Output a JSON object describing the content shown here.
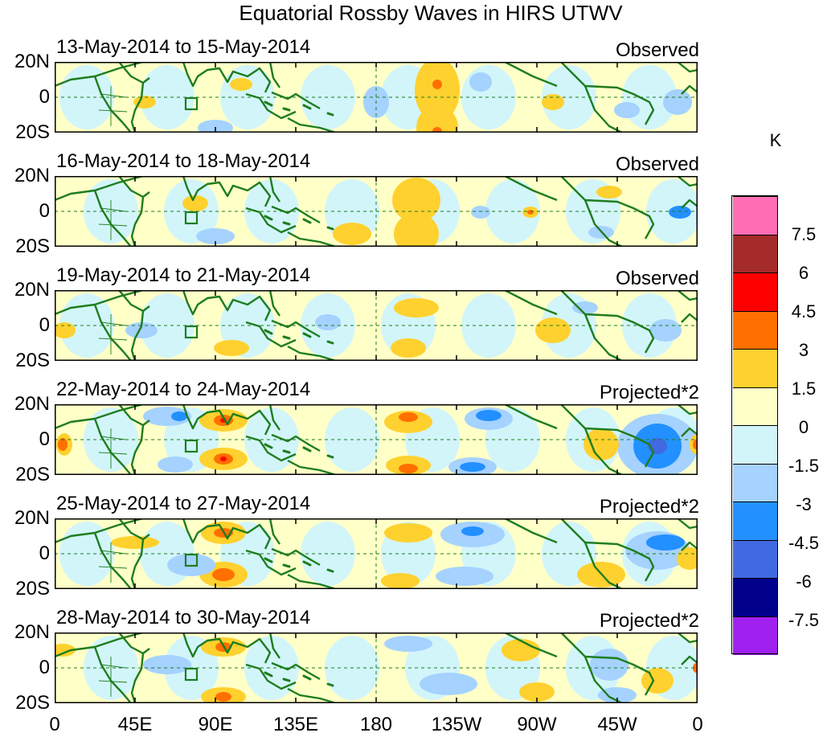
{
  "title": "Equatorial Rossby Waves in HIRS UTWV",
  "lat_labels": [
    "20N",
    "0",
    "20S"
  ],
  "panels": [
    {
      "date_range": "13-May-2014 to 15-May-2014",
      "type": "Observed"
    },
    {
      "date_range": "16-May-2014 to 18-May-2014",
      "type": "Observed"
    },
    {
      "date_range": "19-May-2014 to 21-May-2014",
      "type": "Observed"
    },
    {
      "date_range": "22-May-2014 to 24-May-2014",
      "type": "Projected*2"
    },
    {
      "date_range": "25-May-2014 to 27-May-2014",
      "type": "Projected*2"
    },
    {
      "date_range": "28-May-2014 to 30-May-2014",
      "type": "Projected*2"
    }
  ],
  "x_axis": {
    "ticks": [
      "0",
      "45E",
      "90E",
      "135E",
      "180",
      "135W",
      "90W",
      "45W",
      "0"
    ]
  },
  "colorbar": {
    "unit": "K",
    "labels": [
      "7.5",
      "6",
      "4.5",
      "3",
      "1.5",
      "0",
      "-1.5",
      "-3",
      "-4.5",
      "-6",
      "-7.5"
    ],
    "colors": [
      "#ff6eb4",
      "#a52a2a",
      "#ff0000",
      "#ff7000",
      "#ffd12e",
      "#ffffc8",
      "#d2f5fa",
      "#a5d2ff",
      "#2390ff",
      "#4169e1",
      "#00008b",
      "#a020f0"
    ]
  },
  "map_colors": {
    "coast": "#1e7d1e",
    "zero_pos": "#ffffc8",
    "zero_neg": "#d2f5fa",
    "pos1": "#ffd12e",
    "pos2": "#ff7000",
    "pos3": "#ff0000",
    "neg1": "#a5d2ff",
    "neg2": "#2390ff",
    "neg3": "#4169e1"
  }
}
